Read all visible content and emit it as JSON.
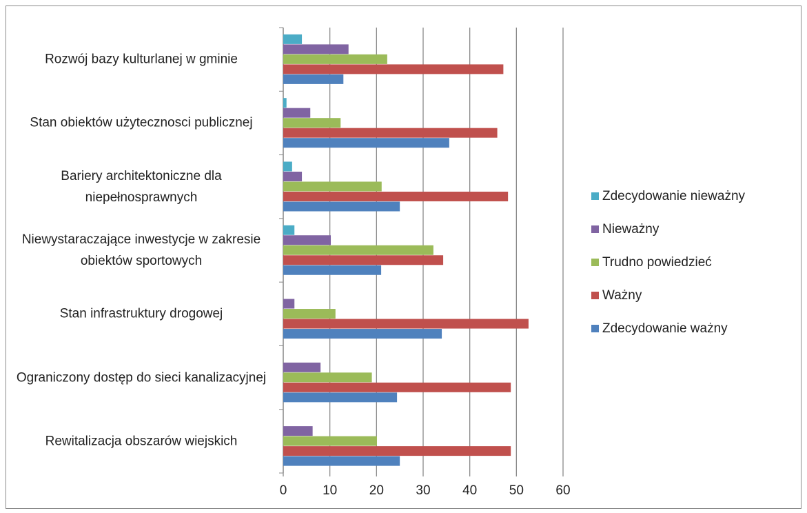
{
  "chart_data": {
    "type": "barh",
    "categories": [
      "Rozwój bazy kulturlanej w gminie",
      "Stan obiektów użytecznosci publicznej",
      "Bariery architektoniczne dla niepełnosprawnych",
      "Niewystaraczające inwestycje w zakresie obiektów sportowych",
      "Stan infrastruktury drogowej",
      "Ograniczony dostęp do sieci kanalizacyjnej",
      "Rewitalizacja obszarów wiejskich"
    ],
    "series": [
      {
        "name": "Zdecydowanie nieważny",
        "color": "#4bacc6",
        "values": [
          4.0,
          0.7,
          1.9,
          2.4,
          0,
          0,
          0
        ]
      },
      {
        "name": "Nieważny",
        "color": "#8064a2",
        "values": [
          14.0,
          5.8,
          4.0,
          10.2,
          2.4,
          8.0,
          6.3
        ]
      },
      {
        "name": "Trudno powiedzieć",
        "color": "#9bbb59",
        "values": [
          22.3,
          12.3,
          21.1,
          32.2,
          11.2,
          19.0,
          20.1
        ]
      },
      {
        "name": "Ważny",
        "color": "#c0504d",
        "values": [
          47.2,
          45.9,
          48.2,
          34.3,
          52.6,
          48.8,
          48.8
        ]
      },
      {
        "name": "Zdecydowanie ważny",
        "color": "#4f81bd",
        "values": [
          12.9,
          35.6,
          25.0,
          21.0,
          34.0,
          24.4,
          25.0
        ]
      }
    ],
    "xlim": [
      0,
      60
    ],
    "xticks": [
      0,
      10,
      20,
      30,
      40,
      50,
      60
    ],
    "grid": true,
    "legend": "right"
  }
}
